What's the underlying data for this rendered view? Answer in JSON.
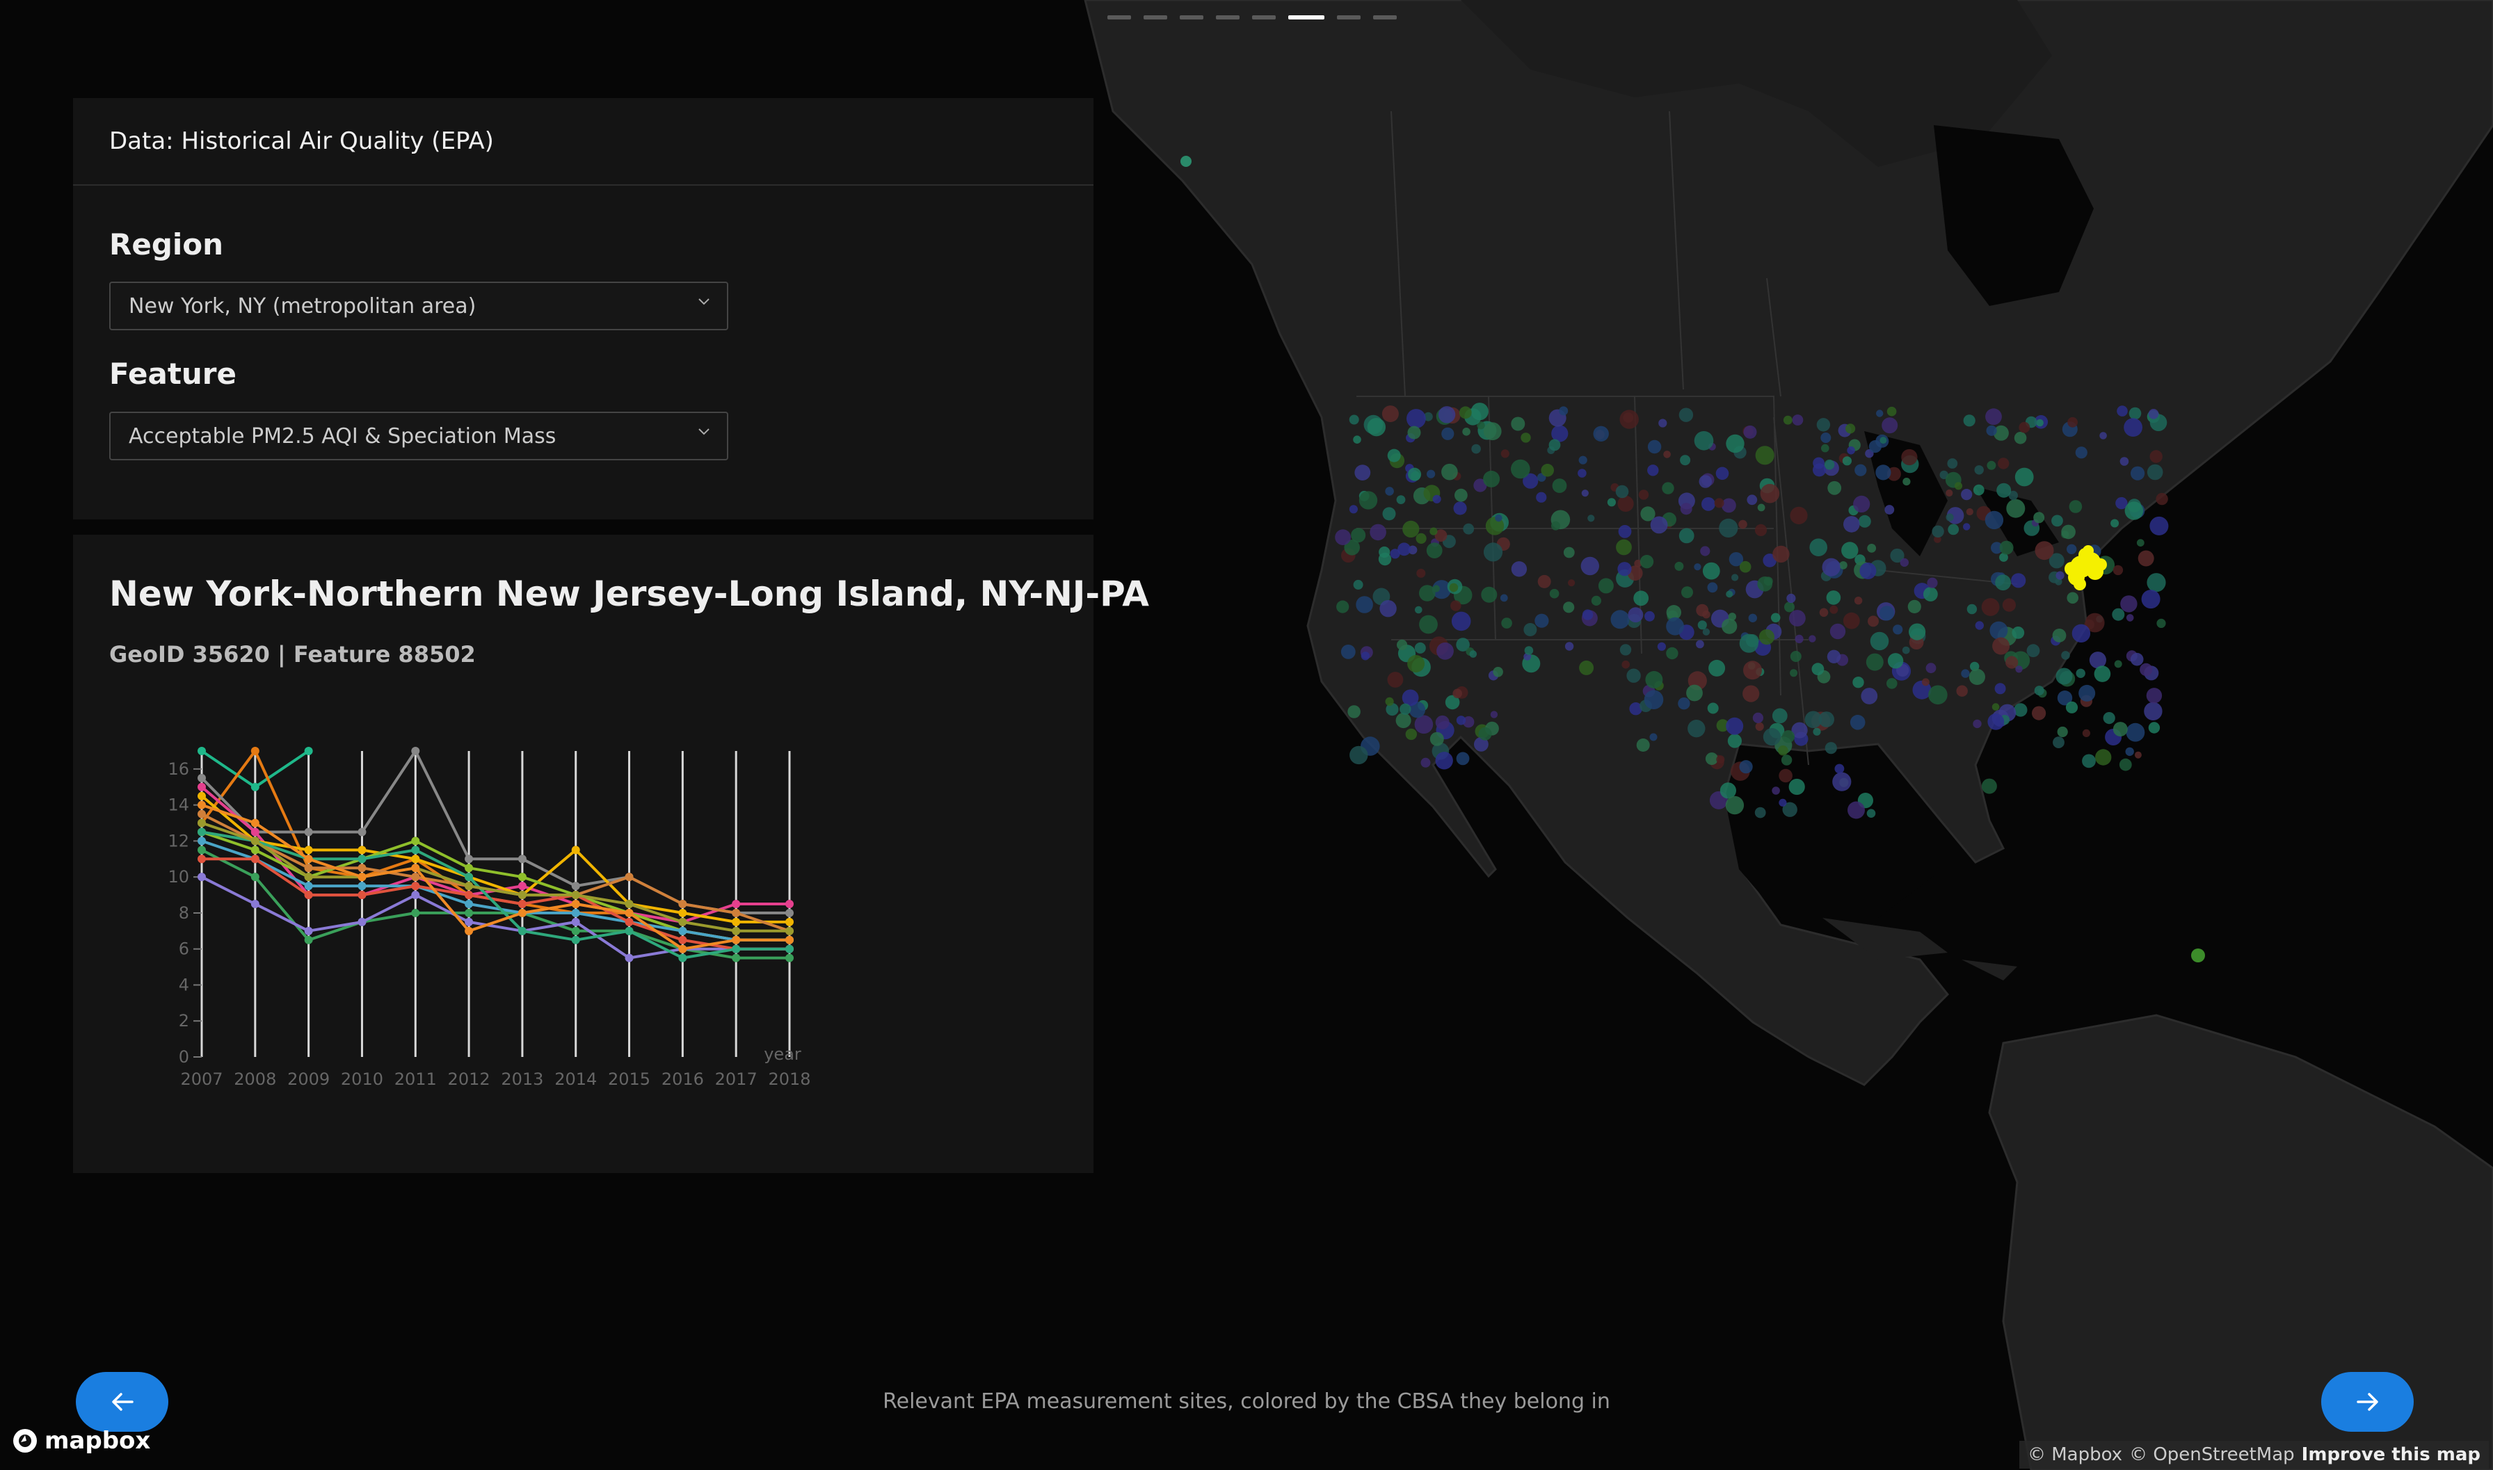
{
  "header": {
    "title": "Data: Historical Air Quality (EPA)"
  },
  "region": {
    "label": "Region",
    "selected": "New York, NY (metropolitan area)"
  },
  "feature": {
    "label": "Feature",
    "selected": "Acceptable PM2.5 AQI & Speciation Mass"
  },
  "info": {
    "title": "New York-Northern New Jersey-Long Island, NY-NJ-PA",
    "subtitle": "GeoID 35620 | Feature 88502"
  },
  "progress": {
    "total": 8,
    "active_index": 5
  },
  "caption": "Relevant EPA measurement sites, colored by the CBSA they belong in",
  "nav": {
    "prev_icon": "arrow-left-icon",
    "next_icon": "arrow-right-icon",
    "accent": "#1a7ee0"
  },
  "brand": {
    "logo_text": "mapbox"
  },
  "attribution": {
    "mapbox": "© Mapbox",
    "osm": "© OpenStreetMap",
    "improve": "Improve this map"
  },
  "chart_data": {
    "type": "line",
    "x": [
      2007,
      2008,
      2009,
      2010,
      2011,
      2012,
      2013,
      2014,
      2015,
      2016,
      2017,
      2018
    ],
    "xlabel": "year",
    "ylabel": "",
    "yticks": [
      0,
      2,
      4,
      6,
      8,
      10,
      12,
      14,
      16
    ],
    "ylim": [
      0,
      17
    ],
    "grid": "vertical",
    "series": [
      {
        "color": "#1fb88a",
        "values": [
          17,
          15,
          17,
          null,
          null,
          null,
          null,
          null,
          null,
          null,
          null,
          null
        ]
      },
      {
        "color": "#e57a13",
        "values": [
          13,
          17,
          10.5,
          10,
          11,
          9,
          8.5,
          8,
          8,
          7,
          6.5,
          6.5
        ]
      },
      {
        "color": "#888888",
        "values": [
          15.5,
          12.5,
          12.5,
          12.5,
          17,
          11,
          11,
          9.5,
          10,
          8.5,
          8,
          8
        ]
      },
      {
        "color": "#e5408e",
        "values": [
          15,
          12.5,
          9,
          9,
          10,
          9,
          9.5,
          8.5,
          8,
          7.5,
          8.5,
          8.5
        ]
      },
      {
        "color": "#f0b400",
        "values": [
          14.5,
          12,
          11.5,
          11.5,
          11,
          10,
          9,
          11.5,
          8.5,
          8,
          7.5,
          7.5
        ]
      },
      {
        "color": "#8fbf2b",
        "values": [
          12.5,
          11.5,
          10,
          11,
          12,
          10.5,
          10,
          9,
          8,
          7,
          6.5,
          6.5
        ]
      },
      {
        "color": "#3aa05a",
        "values": [
          11.5,
          10,
          6.5,
          7.5,
          8,
          8,
          8,
          7,
          7,
          6,
          5.5,
          5.5
        ]
      },
      {
        "color": "#8a7ad6",
        "values": [
          10,
          8.5,
          7,
          7.5,
          9,
          7.5,
          7,
          7.5,
          5.5,
          6,
          6,
          6
        ]
      },
      {
        "color": "#d0803a",
        "values": [
          13.5,
          12,
          10.5,
          10.5,
          10,
          9.5,
          9,
          9,
          10,
          8.5,
          8,
          7
        ]
      },
      {
        "color": "#4aa5c7",
        "values": [
          12,
          11,
          9.5,
          9.5,
          9.5,
          8.5,
          8,
          8,
          7.5,
          7,
          6.5,
          6.5
        ]
      },
      {
        "color": "#e0533d",
        "values": [
          11,
          11,
          9,
          9,
          9.5,
          9,
          8.5,
          9,
          7.5,
          6.5,
          6,
          6
        ]
      },
      {
        "color": "#2ea87c",
        "values": [
          12.5,
          12,
          11,
          11,
          11.5,
          10,
          7,
          6.5,
          7,
          5.5,
          6,
          6
        ]
      },
      {
        "color": "#9b9b2d",
        "values": [
          13,
          12,
          10,
          10,
          10.5,
          9.5,
          9,
          9,
          8.5,
          7.5,
          7,
          7
        ]
      },
      {
        "color": "#f08a24",
        "values": [
          14,
          13,
          11,
          10,
          10.5,
          7,
          8,
          8.5,
          8,
          6,
          6.5,
          6.5
        ]
      }
    ]
  }
}
